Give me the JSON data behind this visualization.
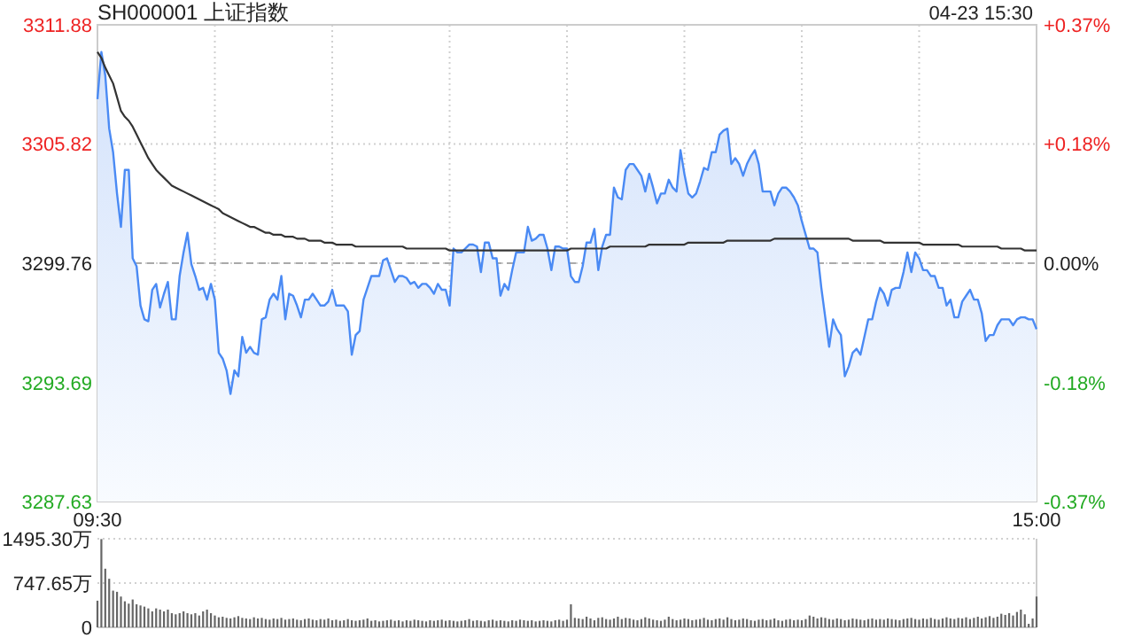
{
  "chart_data": [
    {
      "type": "area",
      "title": "SH000001 上证指数",
      "annotations": [
        "04-23 15:30"
      ],
      "categories": [
        "09:30",
        null,
        null,
        null,
        null,
        null,
        null,
        null,
        null,
        null,
        null,
        null,
        null,
        null,
        null,
        null,
        null,
        null,
        null,
        null,
        null,
        null,
        null,
        null,
        null,
        null,
        null,
        null,
        null,
        null,
        null,
        null,
        null,
        null,
        null,
        null,
        null,
        null,
        null,
        null,
        null,
        null,
        null,
        null,
        null,
        null,
        null,
        null,
        null,
        null,
        null,
        null,
        null,
        null,
        null,
        null,
        null,
        null,
        null,
        null,
        null,
        null,
        null,
        null,
        null,
        null,
        null,
        null,
        null,
        null,
        null,
        null,
        null,
        null,
        null,
        null,
        null,
        null,
        null,
        null,
        null,
        null,
        null,
        null,
        null,
        null,
        null,
        null,
        null,
        null,
        null,
        null,
        null,
        null,
        null,
        null,
        null,
        null,
        null,
        null,
        null,
        null,
        null,
        null,
        null,
        null,
        null,
        null,
        null,
        null,
        null,
        null,
        null,
        null,
        null,
        null,
        null,
        null,
        null,
        null,
        null,
        null,
        null,
        null,
        null,
        null,
        null,
        null,
        null,
        null,
        null,
        null,
        null,
        null,
        null,
        null,
        null,
        null,
        null,
        null,
        null,
        null,
        null,
        null,
        null,
        null,
        null,
        null,
        null,
        null,
        null,
        null,
        null,
        null,
        null,
        null,
        null,
        null,
        null,
        null,
        null,
        null,
        null,
        null,
        null,
        null,
        null,
        null,
        null,
        null,
        null,
        null,
        null,
        null,
        null,
        null,
        null,
        null,
        null,
        null,
        null,
        null,
        null,
        null,
        null,
        null,
        null,
        null,
        null,
        null,
        null,
        null,
        null,
        null,
        null,
        null,
        null,
        null,
        null,
        null,
        null,
        null,
        null,
        null,
        null,
        null,
        null,
        null,
        null,
        null,
        null,
        null,
        null,
        null,
        null,
        null,
        null,
        null,
        null,
        null,
        null,
        null,
        null,
        null,
        null,
        null,
        null,
        null,
        null,
        null,
        null,
        null,
        null,
        null,
        null,
        null,
        null,
        null,
        null,
        null,
        "15:00"
      ],
      "ylim": [
        3287.63,
        3311.88
      ],
      "yticks": [
        3287.63,
        3293.69,
        3299.76,
        3305.82,
        3311.88
      ],
      "y2lim": [
        -0.367,
        0.367
      ],
      "y2ticks": [
        {
          "value": -0.367,
          "label": "-0.37%"
        },
        {
          "value": -0.184,
          "label": "-0.18%"
        },
        {
          "value": 0,
          "label": "0.00%"
        },
        {
          "value": 0.184,
          "label": "+0.18%"
        },
        {
          "value": 0.367,
          "label": "+0.37%"
        }
      ],
      "grid": true,
      "ref_lines": [
        {
          "axis": "y",
          "value": 3299.76,
          "color": "#aaaaaa",
          "line_style": "dashed"
        }
      ],
      "series": [
        {
          "type": "area",
          "color": "#4a8af4",
          "values": [
            3308.1,
            3310.5,
            3309.3,
            3306.6,
            3305.4,
            3303.3,
            3301.6,
            3304.5,
            3304.5,
            3300.0,
            3299.6,
            3297.6,
            3296.9,
            3296.8,
            3298.4,
            3298.7,
            3297.5,
            3298.2,
            3298.8,
            3296.9,
            3296.9,
            3299.1,
            3300.3,
            3301.3,
            3299.7,
            3299.1,
            3298.4,
            3298.5,
            3297.9,
            3298.7,
            3297.9,
            3295.2,
            3294.9,
            3294.3,
            3293.1,
            3294.3,
            3294.0,
            3296.0,
            3295.2,
            3295.5,
            3295.2,
            3295.1,
            3296.9,
            3297.0,
            3297.9,
            3298.2,
            3297.9,
            3299.1,
            3296.9,
            3298.2,
            3298.1,
            3297.6,
            3297.0,
            3297.9,
            3297.9,
            3298.2,
            3297.9,
            3297.6,
            3297.6,
            3297.8,
            3298.4,
            3297.6,
            3297.6,
            3297.6,
            3297.3,
            3295.1,
            3296.1,
            3296.3,
            3297.9,
            3298.5,
            3299.1,
            3299.1,
            3299.1,
            3299.9,
            3300.0,
            3299.4,
            3298.8,
            3299.1,
            3299.1,
            3299.0,
            3298.7,
            3298.8,
            3298.5,
            3298.7,
            3298.7,
            3298.5,
            3298.2,
            3298.7,
            3298.4,
            3298.4,
            3297.6,
            3300.5,
            3300.3,
            3300.3,
            3300.5,
            3300.7,
            3300.7,
            3300.6,
            3299.3,
            3300.8,
            3300.8,
            3300.0,
            3300.0,
            3298.1,
            3298.7,
            3298.4,
            3299.4,
            3300.3,
            3300.3,
            3300.3,
            3301.6,
            3300.9,
            3301.0,
            3301.2,
            3301.2,
            3300.5,
            3299.4,
            3300.6,
            3300.6,
            3300.5,
            3300.5,
            3299.1,
            3298.8,
            3298.8,
            3299.6,
            3300.8,
            3300.8,
            3301.5,
            3299.4,
            3300.6,
            3301.2,
            3301.2,
            3303.6,
            3303.1,
            3303.0,
            3304.5,
            3304.8,
            3304.8,
            3304.5,
            3304.2,
            3303.4,
            3304.3,
            3303.6,
            3302.8,
            3303.3,
            3303.3,
            3304.0,
            3303.6,
            3303.4,
            3305.5,
            3304.3,
            3303.3,
            3303.1,
            3303.3,
            3303.9,
            3304.6,
            3304.5,
            3305.4,
            3305.4,
            3306.3,
            3306.5,
            3306.6,
            3304.8,
            3305.1,
            3304.8,
            3304.2,
            3304.8,
            3305.2,
            3305.5,
            3304.8,
            3303.4,
            3303.4,
            3303.4,
            3302.7,
            3303.3,
            3303.6,
            3303.6,
            3303.4,
            3303.1,
            3302.7,
            3301.9,
            3301.2,
            3300.5,
            3300.5,
            3300.3,
            3298.5,
            3297.0,
            3295.5,
            3296.9,
            3296.4,
            3296.1,
            3294.0,
            3294.5,
            3295.2,
            3295.4,
            3295.1,
            3296.0,
            3296.9,
            3296.9,
            3297.8,
            3298.5,
            3298.2,
            3297.6,
            3298.4,
            3298.5,
            3298.5,
            3299.3,
            3300.3,
            3299.3,
            3300.3,
            3300.0,
            3299.4,
            3299.4,
            3299.1,
            3299.1,
            3298.5,
            3298.5,
            3297.6,
            3297.9,
            3297.0,
            3297.0,
            3297.8,
            3298.1,
            3298.4,
            3297.9,
            3297.9,
            3297.2,
            3295.8,
            3296.1,
            3296.1,
            3296.6,
            3296.9,
            3296.9,
            3296.9,
            3296.6,
            3296.9,
            3297.0,
            3297.0,
            3296.9,
            3296.9,
            3296.4
          ]
        },
        {
          "type": "line",
          "color": "#333333",
          "values": [
            3310.5,
            3310.2,
            3309.7,
            3309.3,
            3308.9,
            3308.2,
            3307.5,
            3307.2,
            3307.0,
            3306.7,
            3306.3,
            3305.9,
            3305.5,
            3305.1,
            3304.8,
            3304.5,
            3304.3,
            3304.1,
            3303.9,
            3303.7,
            3303.6,
            3303.5,
            3303.4,
            3303.3,
            3303.2,
            3303.1,
            3303.0,
            3302.9,
            3302.8,
            3302.7,
            3302.6,
            3302.5,
            3302.3,
            3302.2,
            3302.1,
            3302.0,
            3301.9,
            3301.8,
            3301.7,
            3301.6,
            3301.6,
            3301.5,
            3301.4,
            3301.3,
            3301.3,
            3301.2,
            3301.2,
            3301.2,
            3301.1,
            3301.1,
            3301.1,
            3301.0,
            3301.0,
            3301.0,
            3300.9,
            3300.9,
            3300.9,
            3300.9,
            3300.8,
            3300.8,
            3300.8,
            3300.7,
            3300.7,
            3300.7,
            3300.7,
            3300.7,
            3300.6,
            3300.6,
            3300.6,
            3300.6,
            3300.6,
            3300.6,
            3300.6,
            3300.6,
            3300.6,
            3300.6,
            3300.6,
            3300.6,
            3300.6,
            3300.5,
            3300.5,
            3300.5,
            3300.5,
            3300.5,
            3300.5,
            3300.5,
            3300.5,
            3300.5,
            3300.5,
            3300.5,
            3300.4,
            3300.4,
            3300.4,
            3300.4,
            3300.4,
            3300.4,
            3300.4,
            3300.4,
            3300.4,
            3300.4,
            3300.4,
            3300.4,
            3300.4,
            3300.4,
            3300.4,
            3300.4,
            3300.4,
            3300.4,
            3300.4,
            3300.4,
            3300.4,
            3300.4,
            3300.4,
            3300.4,
            3300.4,
            3300.4,
            3300.4,
            3300.4,
            3300.4,
            3300.4,
            3300.4,
            3300.5,
            3300.5,
            3300.5,
            3300.5,
            3300.5,
            3300.5,
            3300.5,
            3300.5,
            3300.5,
            3300.5,
            3300.6,
            3300.6,
            3300.6,
            3300.6,
            3300.6,
            3300.6,
            3300.6,
            3300.6,
            3300.6,
            3300.6,
            3300.7,
            3300.7,
            3300.7,
            3300.7,
            3300.7,
            3300.7,
            3300.7,
            3300.7,
            3300.7,
            3300.7,
            3300.8,
            3300.8,
            3300.8,
            3300.8,
            3300.8,
            3300.8,
            3300.8,
            3300.8,
            3300.8,
            3300.8,
            3300.9,
            3300.9,
            3300.9,
            3300.9,
            3300.9,
            3300.9,
            3300.9,
            3300.9,
            3300.9,
            3300.9,
            3300.9,
            3300.9,
            3301.0,
            3301.0,
            3301.0,
            3301.0,
            3301.0,
            3301.0,
            3301.0,
            3301.0,
            3301.0,
            3301.0,
            3301.0,
            3301.0,
            3301.0,
            3301.0,
            3301.0,
            3301.0,
            3301.0,
            3301.0,
            3301.0,
            3301.0,
            3300.9,
            3300.9,
            3300.9,
            3300.9,
            3300.9,
            3300.9,
            3300.9,
            3300.9,
            3300.8,
            3300.8,
            3300.8,
            3300.8,
            3300.8,
            3300.8,
            3300.8,
            3300.8,
            3300.8,
            3300.8,
            3300.7,
            3300.7,
            3300.7,
            3300.7,
            3300.7,
            3300.7,
            3300.7,
            3300.7,
            3300.7,
            3300.7,
            3300.6,
            3300.6,
            3300.6,
            3300.6,
            3300.6,
            3300.6,
            3300.6,
            3300.6,
            3300.6,
            3300.6,
            3300.5,
            3300.5,
            3300.5,
            3300.5,
            3300.5,
            3300.5,
            3300.4,
            3300.4,
            3300.4,
            3300.4
          ]
        }
      ]
    },
    {
      "type": "bar",
      "color": "#666666",
      "grid": "y",
      "tick_labels": "y",
      "ylim": [
        0,
        1495.3
      ],
      "yticks": [
        0,
        {
          "value": 747.65,
          "label": "747.65万"
        },
        {
          "value": 1495.3,
          "label": "1495.30万"
        }
      ],
      "categories": [
        null,
        null,
        null,
        null,
        null,
        null,
        null,
        null,
        null,
        null,
        null,
        null,
        null,
        null,
        null,
        null,
        null,
        null,
        null,
        null,
        null,
        null,
        null,
        null,
        null,
        null,
        null,
        null,
        null,
        null,
        null,
        null,
        null,
        null,
        null,
        null,
        null,
        null,
        null,
        null,
        null,
        null,
        null,
        null,
        null,
        null,
        null,
        null,
        null,
        null,
        null,
        null,
        null,
        null,
        null,
        null,
        null,
        null,
        null,
        null,
        null,
        null,
        null,
        null,
        null,
        null,
        null,
        null,
        null,
        null,
        null,
        null,
        null,
        null,
        null,
        null,
        null,
        null,
        null,
        null,
        null,
        null,
        null,
        null,
        null,
        null,
        null,
        null,
        null,
        null,
        null,
        null,
        null,
        null,
        null,
        null,
        null,
        null,
        null,
        null,
        null,
        null,
        null,
        null,
        null,
        null,
        null,
        null,
        null,
        null,
        null,
        null,
        null,
        null,
        null,
        null,
        null,
        null,
        null,
        null,
        null,
        null,
        null,
        null,
        null,
        null,
        null,
        null,
        null,
        null,
        null,
        null,
        null,
        null,
        null,
        null,
        null,
        null,
        null,
        null,
        null,
        null,
        null,
        null,
        null,
        null,
        null,
        null,
        null,
        null,
        null,
        null,
        null,
        null,
        null,
        null,
        null,
        null,
        null,
        null,
        null,
        null,
        null,
        null,
        null,
        null,
        null,
        null,
        null,
        null,
        null,
        null,
        null,
        null,
        null,
        null,
        null,
        null,
        null,
        null,
        null,
        null,
        null,
        null,
        null,
        null,
        null,
        null,
        null,
        null,
        null,
        null,
        null,
        null,
        null,
        null,
        null,
        null,
        null,
        null,
        null,
        null,
        null,
        null,
        null,
        null,
        null,
        null,
        null,
        null,
        null,
        null,
        null,
        null,
        null,
        null,
        null,
        null,
        null,
        null,
        null,
        null,
        null,
        null,
        null,
        null,
        null,
        null,
        null,
        null,
        null,
        null,
        null,
        null,
        null,
        null,
        null,
        null,
        null,
        null,
        null
      ],
      "values": [
        450,
        1490,
        990,
        820,
        620,
        600,
        520,
        440,
        400,
        470,
        390,
        370,
        350,
        320,
        270,
        320,
        300,
        270,
        300,
        240,
        220,
        240,
        270,
        240,
        220,
        240,
        200,
        270,
        300,
        240,
        200,
        170,
        180,
        160,
        150,
        170,
        190,
        160,
        150,
        140,
        170,
        150,
        160,
        140,
        130,
        150,
        140,
        160,
        130,
        140,
        150,
        130,
        120,
        140,
        150,
        130,
        120,
        140,
        130,
        150,
        120,
        130,
        110,
        120,
        140,
        120,
        110,
        120,
        130,
        150,
        110,
        120,
        100,
        110,
        120,
        130,
        110,
        120,
        100,
        120,
        110,
        130,
        120,
        110,
        100,
        120,
        110,
        120,
        130,
        110,
        120,
        110,
        100,
        110,
        120,
        140,
        110,
        120,
        110,
        100,
        120,
        130,
        110,
        120,
        110,
        100,
        120,
        110,
        130,
        120,
        110,
        120,
        100,
        110,
        120,
        110,
        100,
        120,
        130,
        110,
        130,
        390,
        160,
        150,
        140,
        180,
        150,
        120,
        160,
        170,
        140,
        130,
        150,
        180,
        140,
        160,
        150,
        130,
        120,
        140,
        170,
        150,
        130,
        120,
        110,
        130,
        180,
        140,
        120,
        130,
        150,
        140,
        120,
        130,
        140,
        160,
        130,
        120,
        140,
        150,
        130,
        170,
        140,
        120,
        130,
        150,
        140,
        120,
        110,
        130,
        140,
        120,
        130,
        150,
        120,
        110,
        130,
        140,
        120,
        130,
        120,
        140,
        200,
        180,
        150,
        170,
        160,
        140,
        130,
        150,
        140,
        120,
        130,
        150,
        140,
        130,
        120,
        140,
        150,
        130,
        140,
        130,
        150,
        140,
        130,
        120,
        140,
        150,
        160,
        140,
        130,
        150,
        140,
        160,
        140,
        130,
        150,
        170,
        150,
        140,
        160,
        150,
        170,
        140,
        160,
        180,
        150,
        170,
        190,
        160,
        180,
        230,
        210,
        240,
        200,
        260,
        300,
        220,
        60,
        150,
        520
      ]
    }
  ]
}
